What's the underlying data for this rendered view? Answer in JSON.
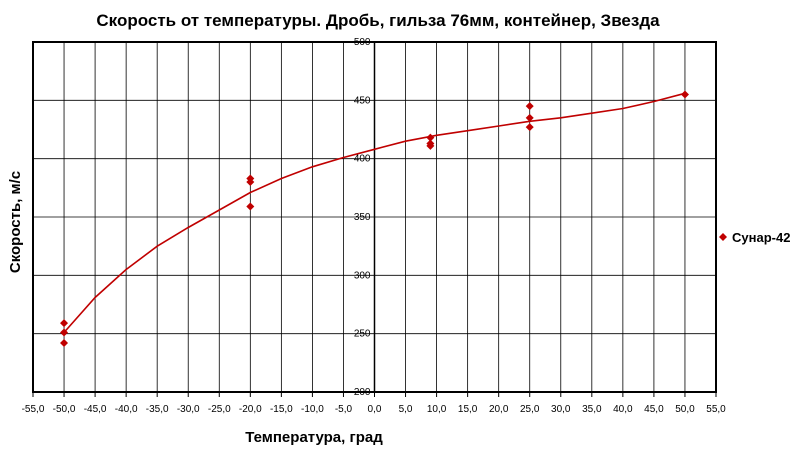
{
  "chart_data": {
    "type": "scatter",
    "title": "Скорость от температуры. Дробь, гильза 76мм, контейнер, Звезда",
    "xlabel": "Температура, град",
    "ylabel": "Скорость, м/с",
    "xlim": [
      -55,
      55
    ],
    "ylim": [
      200,
      500
    ],
    "x_ticks": [
      -55,
      -50,
      -45,
      -40,
      -35,
      -30,
      -25,
      -20,
      -15,
      -10,
      -5,
      0,
      5,
      10,
      15,
      20,
      25,
      30,
      35,
      40,
      45,
      50,
      55
    ],
    "x_tick_labels": [
      "-55,0",
      "-50,0",
      "-45,0",
      "-40,0",
      "-35,0",
      "-30,0",
      "-25,0",
      "-20,0",
      "-15,0",
      "-10,0",
      "-5,0",
      "0,0",
      "5,0",
      "10,0",
      "15,0",
      "20,0",
      "25,0",
      "30,0",
      "35,0",
      "40,0",
      "45,0",
      "50,0",
      "55,0"
    ],
    "y_ticks": [
      200,
      250,
      300,
      350,
      400,
      450,
      500
    ],
    "y_tick_labels": [
      "200",
      "250",
      "300",
      "350",
      "400",
      "450",
      "500"
    ],
    "grid": true,
    "legend_position": "right",
    "series": [
      {
        "name": "Сунар-42",
        "color": "#C00000",
        "marker": "diamond",
        "x": [
          -50,
          -50,
          -50,
          -20,
          -20,
          -20,
          9,
          9,
          9,
          25,
          25,
          25,
          50
        ],
        "y": [
          259,
          251,
          242,
          383,
          380,
          359,
          418,
          413,
          411,
          445,
          435,
          427,
          455
        ]
      }
    ],
    "trendline": {
      "color": "#C00000",
      "x": [
        -50,
        -45,
        -40,
        -35,
        -30,
        -25,
        -20,
        -15,
        -10,
        -5,
        0,
        5,
        10,
        15,
        20,
        25,
        30,
        35,
        40,
        45,
        50
      ],
      "y": [
        251,
        281,
        305,
        325,
        341,
        356,
        371,
        383,
        393,
        401,
        408,
        415,
        420,
        424,
        428,
        432,
        435,
        439,
        443,
        449,
        456
      ]
    }
  }
}
